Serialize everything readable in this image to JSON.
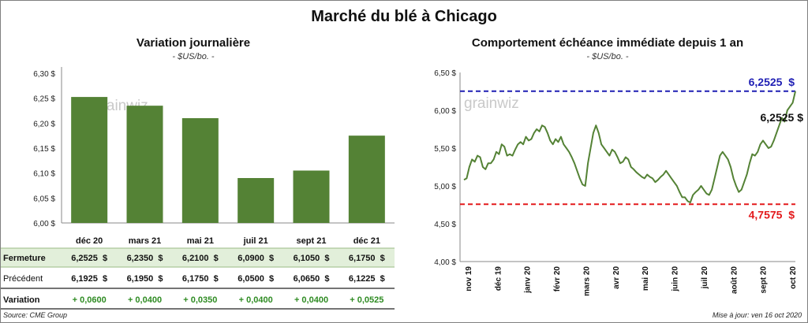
{
  "title": "Marché du blé à Chicago",
  "left": {
    "title": "Variation  journalière",
    "unit": "- $US/bo. -"
  },
  "right": {
    "title": "Comportement  échéance immédiate depuis 1 an",
    "unit": "- $US/bo. -"
  },
  "watermark": "grainwiz",
  "table": {
    "rows": [
      {
        "label": "Fermeture",
        "values": [
          "6,2525  $",
          "6,2350  $",
          "6,2100  $",
          "6,0900  $",
          "6,1050  $",
          "6,1750  $"
        ]
      },
      {
        "label": "Précédent",
        "values": [
          "6,1925  $",
          "6,1950  $",
          "6,1750  $",
          "6,0500  $",
          "6,0650  $",
          "6,1225  $"
        ]
      },
      {
        "label": "Variation",
        "values": [
          "+ 0,0600",
          "+ 0,0400",
          "+ 0,0350",
          "+ 0,0400",
          "+ 0,0400",
          "+ 0,0525"
        ]
      }
    ]
  },
  "source": "Source: CME Group",
  "updated": "Mise à jour: ven 16 oct 2020",
  "colors": {
    "bar": "#548235",
    "line": "#548235",
    "max_line": "#1f1fb4",
    "min_line": "#e31a1c",
    "variation_text": "#2e8b22",
    "fermeture_bg": "#e2efda"
  },
  "chart_data": [
    {
      "type": "bar",
      "categories": [
        "déc 20",
        "mars 21",
        "mai 21",
        "juil 21",
        "sept 21",
        "déc 21"
      ],
      "values": [
        6.2525,
        6.235,
        6.21,
        6.09,
        6.105,
        6.175
      ],
      "ylim": [
        6.0,
        6.3
      ],
      "yticks": [
        "6,00 $",
        "6,05 $",
        "6,10 $",
        "6,15 $",
        "6,20 $",
        "6,25 $",
        "6,30 $"
      ],
      "grid": false
    },
    {
      "type": "line",
      "xlabels": [
        "nov 19",
        "déc 19",
        "janv 20",
        "févr 20",
        "mars 20",
        "avr 20",
        "mai 20",
        "juin 20",
        "juil 20",
        "août 20",
        "sept 20",
        "oct 20"
      ],
      "ylim": [
        4.0,
        6.5
      ],
      "yticks": [
        "4,00 $",
        "4,50 $",
        "5,00 $",
        "5,50 $",
        "6,00 $",
        "6,50 $"
      ],
      "max_value": 6.2525,
      "max_label": "6,2525  $",
      "min_value": 4.7575,
      "min_label": "4,7575  $",
      "last_label": "6,2525 $",
      "series": [
        {
          "values": [
            5.08,
            5.1,
            5.25,
            5.35,
            5.32,
            5.4,
            5.38,
            5.25,
            5.22,
            5.3,
            5.3,
            5.35,
            5.45,
            5.42,
            5.55,
            5.52,
            5.4,
            5.42,
            5.4,
            5.48,
            5.55,
            5.58,
            5.55,
            5.65,
            5.6,
            5.62,
            5.7,
            5.75,
            5.72,
            5.8,
            5.78,
            5.7,
            5.6,
            5.55,
            5.62,
            5.58,
            5.65,
            5.55,
            5.5,
            5.45,
            5.38,
            5.3,
            5.2,
            5.1,
            5.02,
            5.0,
            5.3,
            5.5,
            5.7,
            5.8,
            5.7,
            5.55,
            5.5,
            5.45,
            5.4,
            5.48,
            5.45,
            5.38,
            5.3,
            5.32,
            5.38,
            5.35,
            5.25,
            5.22,
            5.18,
            5.15,
            5.12,
            5.1,
            5.15,
            5.12,
            5.1,
            5.05,
            5.08,
            5.12,
            5.15,
            5.2,
            5.15,
            5.1,
            5.05,
            5.0,
            4.92,
            4.85,
            4.85,
            4.8,
            4.78,
            4.88,
            4.92,
            4.95,
            5.0,
            4.95,
            4.9,
            4.88,
            4.95,
            5.1,
            5.25,
            5.4,
            5.45,
            5.4,
            5.35,
            5.25,
            5.1,
            5.0,
            4.92,
            4.95,
            5.05,
            5.15,
            5.3,
            5.42,
            5.4,
            5.45,
            5.55,
            5.6,
            5.55,
            5.5,
            5.52,
            5.6,
            5.7,
            5.8,
            5.9,
            5.85,
            6.0,
            6.05,
            6.1,
            6.2525
          ]
        }
      ]
    }
  ]
}
